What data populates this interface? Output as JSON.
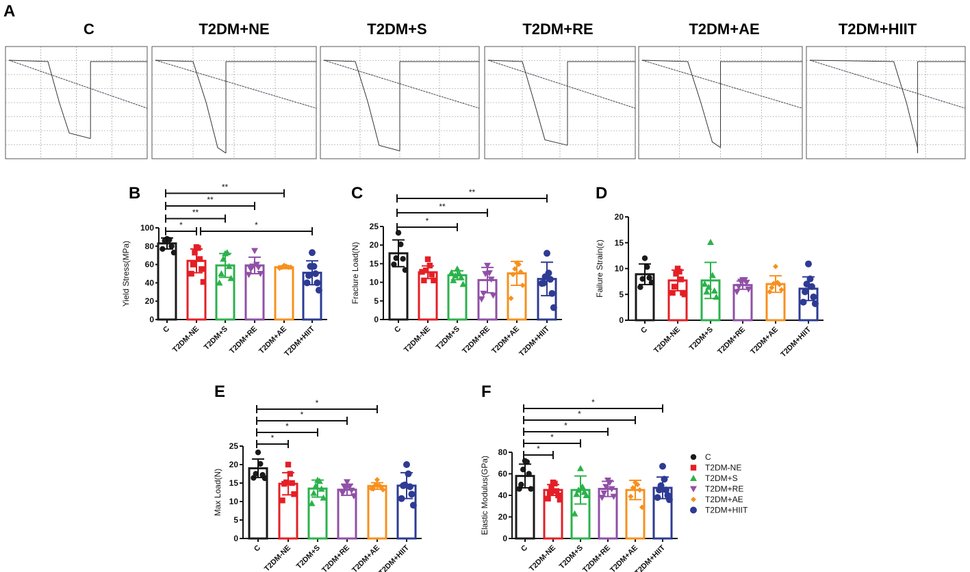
{
  "panel_letters": [
    "A",
    "B",
    "C",
    "D",
    "E",
    "F"
  ],
  "trace_titles": [
    "C",
    "T2DM+NE",
    "T2DM+S",
    "T2DM+RE",
    "T2DM+AE",
    "T2DM+HIIT"
  ],
  "legend": {
    "entries": [
      "C",
      "T2DM-NE",
      "T2DM+S",
      "T2DM+RE",
      "T2DM+AE",
      "T2DM+HIIT"
    ]
  },
  "colors": {
    "C": "#1a1a1a",
    "NE": "#e41f26",
    "S": "#2bb24c",
    "RE": "#8f50a6",
    "AE": "#f7901e",
    "HIIT": "#2e3b93"
  },
  "chart_data": [
    {
      "panel": "B",
      "type": "bar",
      "ylabel": "Yield Stress(MPa)",
      "ylim": [
        0,
        100
      ],
      "yticks": [
        0,
        20,
        40,
        60,
        80,
        100
      ],
      "categories": [
        "C",
        "T2DM-NE",
        "T2DM+S",
        "T2DM+RE",
        "T2DM+AE",
        "T2DM+HIIT"
      ],
      "means": [
        83,
        64,
        59,
        59,
        57,
        51
      ],
      "sd": [
        6,
        13,
        13,
        9,
        1.5,
        13
      ],
      "points": [
        [
          88,
          87,
          86,
          80,
          77,
          73
        ],
        [
          79,
          78,
          73,
          66,
          60,
          55,
          50,
          41
        ],
        [
          72,
          73,
          66,
          58,
          50,
          45,
          40
        ],
        [
          75,
          60,
          58,
          57,
          55,
          50,
          49
        ],
        [
          59,
          58,
          57,
          57,
          56,
          57
        ],
        [
          73,
          58,
          58,
          50,
          48,
          40,
          40,
          32
        ]
      ],
      "significance": [
        {
          "from": 0,
          "to": 1,
          "label": "*"
        },
        {
          "from": 0,
          "to": 2,
          "label": "**"
        },
        {
          "from": 0,
          "to": 3,
          "label": "**"
        },
        {
          "from": 0,
          "to": 4,
          "label": "**"
        },
        {
          "from": 1,
          "to": 5,
          "label": "*"
        }
      ]
    },
    {
      "panel": "C",
      "type": "bar",
      "ylabel": "Fraclure Load(N)",
      "ylim": [
        0,
        25
      ],
      "yticks": [
        0,
        5,
        10,
        15,
        20,
        25
      ],
      "categories": [
        "C",
        "T2DM-NE",
        "T2DM+S",
        "T2DM+RE",
        "T2DM+AE",
        "T2DM+HIIT"
      ],
      "means": [
        17.8,
        12.7,
        11.9,
        10.6,
        12.4,
        10.9
      ],
      "sd": [
        3.6,
        1.7,
        1.2,
        3.4,
        3.2,
        4.5
      ],
      "points": [
        [
          23.3,
          20.2,
          16.5,
          16.3,
          14.8,
          13.3
        ],
        [
          16.2,
          14.5,
          13.2,
          12.1,
          10.5,
          10.5,
          12.8
        ],
        [
          13.6,
          12.3,
          11.8,
          11.3,
          10.5,
          9.5,
          12.6
        ],
        [
          14.5,
          12.5,
          12.3,
          10.8,
          7,
          6.5,
          5.5
        ],
        [
          15.2,
          14.8,
          13.6,
          12.8,
          12.1,
          9.2,
          5.7
        ],
        [
          17.8,
          12.5,
          11.5,
          10.8,
          9.8,
          7,
          9.7,
          3.2
        ]
      ],
      "significance": [
        {
          "from": 0,
          "to": 2,
          "label": "*"
        },
        {
          "from": 0,
          "to": 3,
          "label": "**"
        },
        {
          "from": 0,
          "to": 5,
          "label": "**"
        }
      ]
    },
    {
      "panel": "D",
      "type": "bar",
      "ylabel": "Failure Strain(ε)",
      "ylim": [
        0,
        20
      ],
      "yticks": [
        0,
        5,
        10,
        15,
        20
      ],
      "categories": [
        "C",
        "T2DM-NE",
        "T2DM+S",
        "T2DM+RE",
        "T2DM+AE",
        "T2DM+HIIT"
      ],
      "means": [
        8.9,
        7.7,
        7.7,
        6.8,
        7.0,
        6.1
      ],
      "sd": [
        2.0,
        2.0,
        3.5,
        0.8,
        1.6,
        2.3
      ],
      "points": [
        [
          12,
          10.3,
          8,
          8.2,
          6.4,
          7.3
        ],
        [
          10,
          9.4,
          9,
          7.9,
          6.5,
          5.3,
          5.3,
          5
        ],
        [
          15.1,
          8.7,
          6.4,
          5.7,
          5.5,
          4.5,
          7
        ],
        [
          7.8,
          7.8,
          7.5,
          7.3,
          6.5,
          6,
          5.5
        ],
        [
          10.4,
          7.3,
          7.1,
          6.9,
          6.3,
          5.9,
          5.5
        ],
        [
          10.9,
          8,
          7,
          6.5,
          5.5,
          4.5,
          3.5,
          3.2
        ]
      ],
      "significance": []
    },
    {
      "panel": "E",
      "type": "bar",
      "ylabel": "Max Load(N)",
      "ylim": [
        0,
        25
      ],
      "yticks": [
        0,
        5,
        10,
        15,
        20,
        25
      ],
      "categories": [
        "C",
        "T2DM-NE",
        "T2DM+S",
        "T2DM+RE",
        "T2DM+AE",
        "T2DM+HIIT"
      ],
      "means": [
        19,
        14.8,
        13.5,
        13.2,
        14.2,
        14.3
      ],
      "sd": [
        2.5,
        3,
        2.3,
        1.5,
        0.9,
        3.5
      ],
      "points": [
        [
          23.3,
          20.2,
          17.5,
          17.2,
          16.4,
          16.3
        ],
        [
          20,
          17.5,
          15.2,
          15,
          14.8,
          12,
          10.3
        ],
        [
          15.8,
          15.5,
          14.2,
          13.4,
          12.3,
          11,
          9.5
        ],
        [
          15.3,
          13.9,
          13.8,
          13,
          12.3,
          11.5
        ],
        [
          15.9,
          14.3,
          14.4,
          14,
          13.4,
          13.2,
          13.5
        ],
        [
          20,
          17.5,
          14.5,
          14,
          14.3,
          12,
          10.8,
          9
        ]
      ],
      "significance": [
        {
          "from": 0,
          "to": 1,
          "label": "*"
        },
        {
          "from": 0,
          "to": 2,
          "label": "*"
        },
        {
          "from": 0,
          "to": 3,
          "label": "*"
        },
        {
          "from": 0,
          "to": 4,
          "label": "*"
        }
      ]
    },
    {
      "panel": "F",
      "type": "bar",
      "ylabel": "Elastic Modulus(GPa)",
      "ylim": [
        0,
        80
      ],
      "yticks": [
        0,
        20,
        40,
        60,
        80
      ],
      "categories": [
        "C",
        "T2DM-NE",
        "T2DM+S",
        "T2DM+RE",
        "T2DM+AE",
        "T2DM+HIIT"
      ],
      "means": [
        58,
        45,
        45,
        46,
        45,
        47
      ],
      "sd": [
        11,
        5,
        13,
        7,
        9,
        10
      ],
      "points": [
        [
          72,
          71,
          64,
          60,
          50,
          46,
          46
        ],
        [
          52,
          51,
          47,
          44,
          42,
          40,
          37,
          36
        ],
        [
          65,
          48,
          45,
          43,
          41,
          40,
          23
        ],
        [
          54,
          52,
          48,
          46,
          42,
          39,
          38
        ],
        [
          52,
          50,
          47,
          45,
          39,
          29
        ],
        [
          67,
          55,
          49,
          45,
          45,
          40,
          38,
          36
        ]
      ],
      "significance": [
        {
          "from": 0,
          "to": 1,
          "label": "*"
        },
        {
          "from": 0,
          "to": 2,
          "label": "*"
        },
        {
          "from": 0,
          "to": 3,
          "label": "*"
        },
        {
          "from": 0,
          "to": 4,
          "label": "*"
        },
        {
          "from": 0,
          "to": 5,
          "label": "*"
        }
      ]
    }
  ]
}
